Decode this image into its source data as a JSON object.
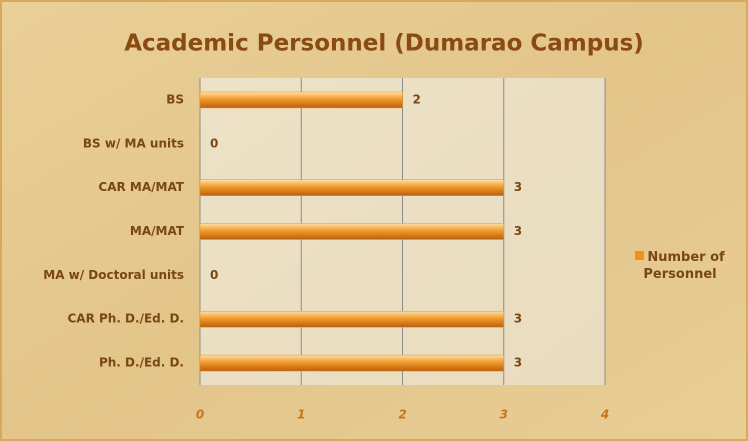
{
  "chart_data": {
    "type": "bar",
    "orientation": "horizontal",
    "title": "Academic Personnel (Dumarao Campus)",
    "categories": [
      "BS",
      "BS w/ MA units",
      "CAR MA/MAT",
      "MA/MAT",
      "MA w/ Doctoral units",
      "CAR Ph. D./Ed. D.",
      "Ph. D./Ed. D."
    ],
    "series": [
      {
        "name": "Number of Personnel",
        "color": "#f0901e",
        "values": [
          2,
          0,
          3,
          3,
          0,
          3,
          3
        ]
      }
    ],
    "xlim": [
      0,
      4
    ],
    "xticks": [
      0,
      1,
      2,
      3,
      4
    ],
    "grid": true,
    "legend": "right"
  }
}
